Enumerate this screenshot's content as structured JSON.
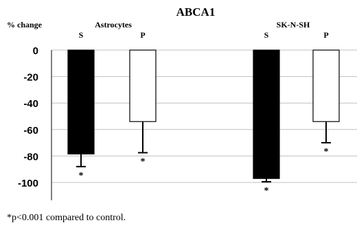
{
  "chart_data": {
    "type": "bar",
    "title": "ABCA1",
    "ylabel": "% change",
    "ylim": [
      -100,
      0
    ],
    "yticks": [
      0,
      -20,
      -40,
      -60,
      -80,
      -100
    ],
    "grid": true,
    "groups": [
      {
        "name": "Astrocytes",
        "bars": [
          {
            "label": "S",
            "value": -78.5,
            "error": 9.5,
            "fill": "solid",
            "significant": true
          },
          {
            "label": "P",
            "value": -54,
            "error": 23.5,
            "fill": "open",
            "significant": true
          }
        ]
      },
      {
        "name": "SK-N-SH",
        "bars": [
          {
            "label": "S",
            "value": -97,
            "error": 2.5,
            "fill": "solid",
            "significant": true
          },
          {
            "label": "P",
            "value": -54,
            "error": 16,
            "fill": "open",
            "significant": true
          }
        ]
      }
    ],
    "significance_marker": "*",
    "footnote": "*p<0.001 compared to control.",
    "colors": {
      "solid_bar": "#000000",
      "open_bar": "#ffffff",
      "outline": "#000000",
      "grid": "#c0c0c0"
    }
  }
}
